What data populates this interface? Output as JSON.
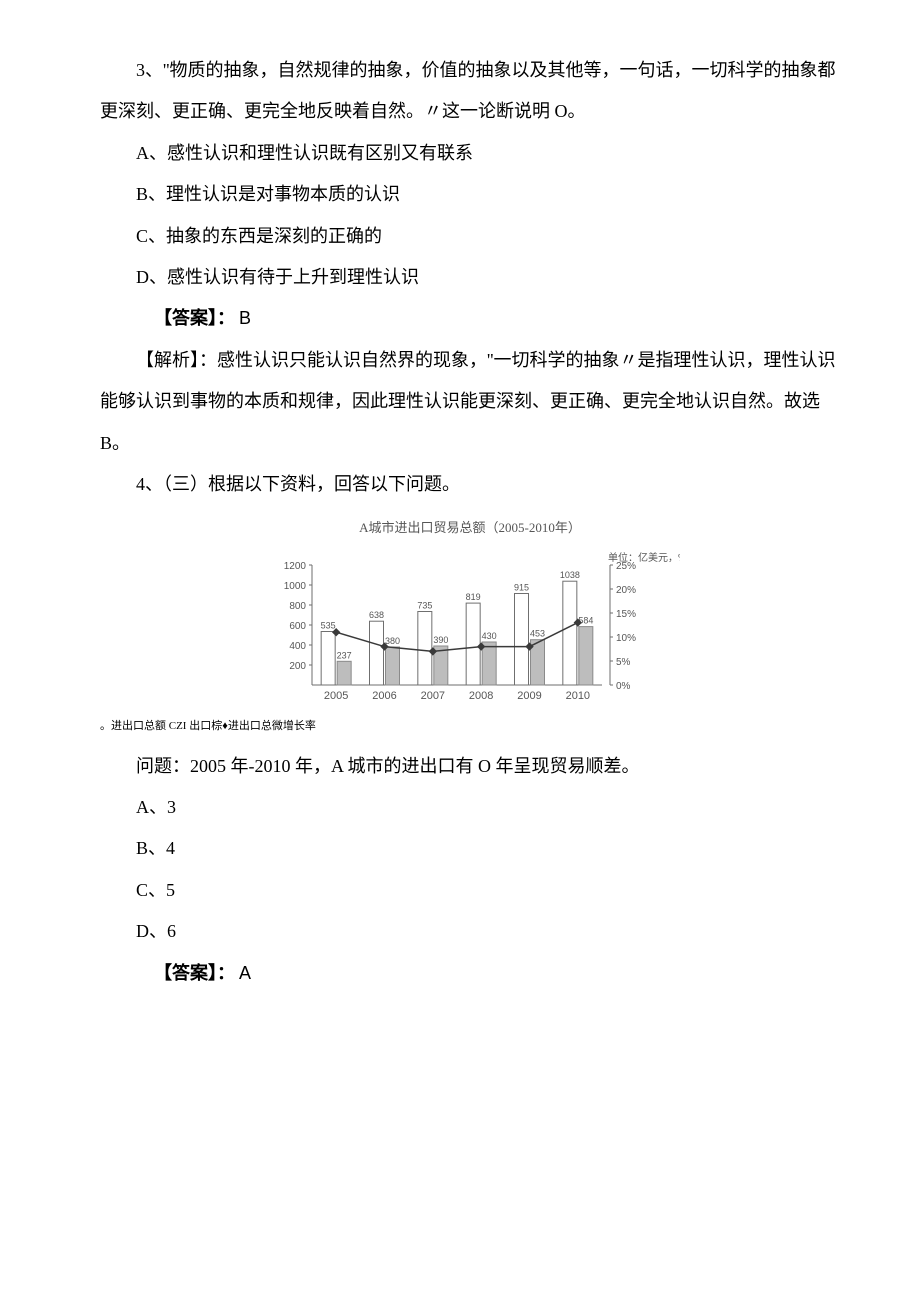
{
  "q3": {
    "stem": "3、''物质的抽象，自然规律的抽象，价值的抽象以及其他等，一句话，一切科学的抽象都更深刻、更正确、更完全地反映着自然。〃这一论断说明 O。",
    "A": "A、感性认识和理性认识既有区别又有联系",
    "B": "B、理性认识是对事物本质的认识",
    "C": "C、抽象的东西是深刻的正确的",
    "D": "D、感性认识有待于上升到理性认识",
    "answer_label": "【答案】：",
    "answer_value": "B",
    "analysis": "【解析】：感性认识只能认识自然界的现象，''一切科学的抽象〃是指理性认识，理性认识能够认识到事物的本质和规律，因此理性认识能更深刻、更正确、更完全地认识自然。故选 B。"
  },
  "q4": {
    "intro": "4、（三）根据以下资料，回答以下问题。",
    "chart": {
      "title": "A城市进出口贸易总额（2005-2010年）",
      "unit_label": "单位：亿美元，%",
      "years": [
        "2005",
        "2006",
        "2007",
        "2008",
        "2009",
        "2010"
      ],
      "totals": [
        535,
        638,
        735,
        819,
        915,
        1038
      ],
      "exports": [
        237,
        380,
        390,
        430,
        453,
        584
      ],
      "growth_pct": [
        11,
        8,
        7,
        8,
        8,
        13
      ],
      "y_left_ticks": [
        200,
        400,
        600,
        800,
        1000,
        1200
      ],
      "y_right_ticks": [
        0,
        5,
        10,
        15,
        20,
        25
      ],
      "colors": {
        "total_bar_fill": "#ffffff",
        "total_bar_stroke": "#6f6f6f",
        "export_bar_fill": "#bdbdbd",
        "export_bar_stroke": "#8a8a8a",
        "line": "#3a3a3a",
        "marker": "#3a3a3a",
        "axis": "#6e6e6e",
        "text": "#565656"
      },
      "legend": "。进出口总额 CZI 出口棕♦进出口总微增长率"
    },
    "question": "问题：2005 年-2010 年，A 城市的进出口有 O 年呈现贸易顺差。",
    "A": "A、3",
    "B": "B、4",
    "C": "C、5",
    "D": "D、6",
    "answer_label": "【答案】：",
    "answer_value": "A"
  }
}
